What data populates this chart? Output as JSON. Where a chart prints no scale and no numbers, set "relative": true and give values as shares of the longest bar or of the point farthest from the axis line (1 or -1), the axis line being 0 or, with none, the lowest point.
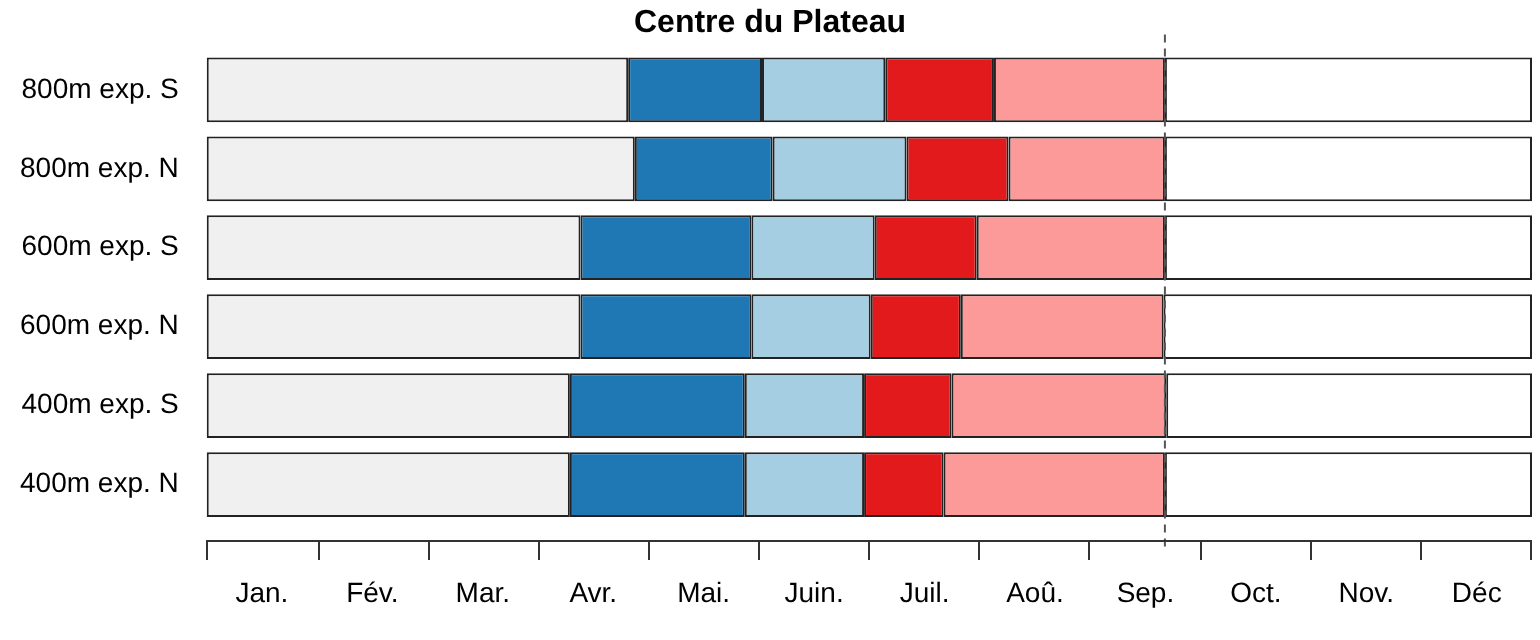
{
  "chart_data": {
    "type": "bar",
    "orientation": "horizontal",
    "stacked": true,
    "relative": true,
    "title": "Centre du Plateau",
    "categories": [
      "800m exp. S",
      "800m exp. N",
      "600m exp. S",
      "600m exp. N",
      "400m exp. S",
      "400m exp. N"
    ],
    "series": [
      {
        "color": "#f0f0f0",
        "values": [
          0.318,
          0.323,
          0.282,
          0.282,
          0.274,
          0.274
        ]
      },
      {
        "color": "#1f78b4",
        "values": [
          0.101,
          0.104,
          0.129,
          0.129,
          0.132,
          0.132
        ]
      },
      {
        "color": "#a6cee3",
        "values": [
          0.093,
          0.101,
          0.093,
          0.09,
          0.09,
          0.09
        ]
      },
      {
        "color": "#e31a1c",
        "values": [
          0.082,
          0.077,
          0.077,
          0.068,
          0.066,
          0.06
        ]
      },
      {
        "color": "#fb9a99",
        "values": [
          0.129,
          0.118,
          0.142,
          0.153,
          0.162,
          0.167
        ]
      },
      {
        "color": "#ffffff",
        "values": [
          0.277,
          0.277,
          0.277,
          0.278,
          0.276,
          0.277
        ]
      }
    ],
    "annotations": [
      "Jan.",
      "Fév.",
      "Mar.",
      "Avr.",
      "Mai.",
      "Juin.",
      "Juil.",
      "Aoû.",
      "Sep.",
      "Oct.",
      "Nov.",
      "Déc"
    ],
    "ref_lines": [
      {
        "axis": "x",
        "value": 0.723,
        "line_style": "dashed",
        "color": "#555555"
      }
    ]
  }
}
